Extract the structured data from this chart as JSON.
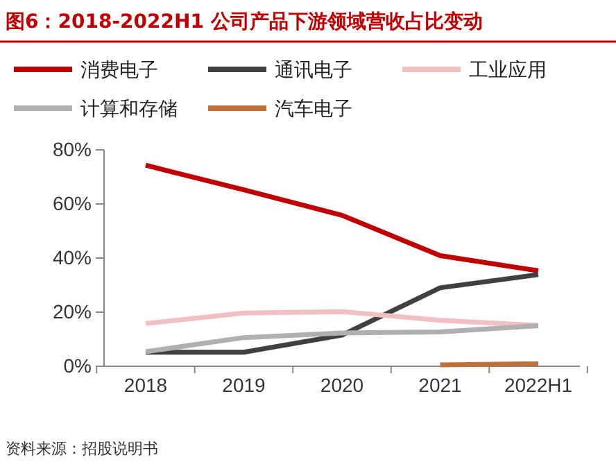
{
  "chart_data": {
    "type": "line",
    "title": "图6：2018-2022H1 公司产品下游领域营收占比变动",
    "categories": [
      "2018",
      "2019",
      "2020",
      "2021",
      "2022H1"
    ],
    "series": [
      {
        "name": "消费电子",
        "color": "#c00000",
        "values": [
          74.3,
          65.2,
          55.8,
          40.9,
          35.3
        ]
      },
      {
        "name": "通讯电子",
        "color": "#404040",
        "values": [
          5.2,
          5.2,
          11.5,
          29,
          33.9
        ]
      },
      {
        "name": "工业应用",
        "color": "#f2c0c0",
        "values": [
          15.8,
          19.7,
          20.2,
          17,
          15.1
        ]
      },
      {
        "name": "计算和存储",
        "color": "#b0b0b0",
        "values": [
          5.4,
          10.6,
          12.3,
          12.7,
          15
        ]
      },
      {
        "name": "汽车电子",
        "color": "#c0703a",
        "values": [
          null,
          null,
          null,
          0.5,
          0.9
        ]
      }
    ],
    "ylim": [
      0,
      80
    ],
    "yticks": [
      {
        "value": 0,
        "label": "0%"
      },
      {
        "value": 20,
        "label": "20%"
      },
      {
        "value": 40,
        "label": "40%"
      },
      {
        "value": 60,
        "label": "60%"
      },
      {
        "value": 80,
        "label": "80%"
      }
    ],
    "legend": "top",
    "marker": "none",
    "line_style": "solid",
    "grid": false,
    "annotations": [
      "资料来源：招股说明书"
    ]
  }
}
